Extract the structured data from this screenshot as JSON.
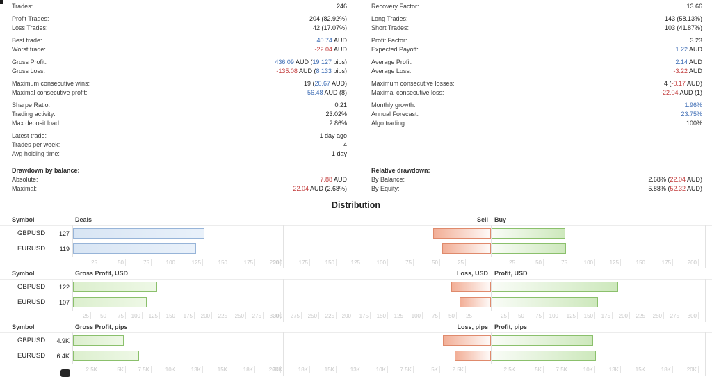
{
  "colors": {
    "positive_text": "#3e6db5",
    "negative_text": "#c23b3b",
    "deals_bar": "#dce8f6",
    "profit_bar": "#dff0d5",
    "loss_bar": "#f2ae96"
  },
  "stats": {
    "left": [
      {
        "label": "Trades:",
        "segs": [
          [
            "246",
            "k"
          ]
        ]
      },
      {
        "label": "Profit Trades:",
        "segs": [
          [
            "204 (82.92%)",
            "k"
          ]
        ],
        "g": true
      },
      {
        "label": "Loss Trades:",
        "segs": [
          [
            "42 (17.07%)",
            "k"
          ]
        ]
      },
      {
        "label": "Best trade:",
        "segs": [
          [
            "40.74",
            "b"
          ],
          [
            " AUD",
            "k"
          ]
        ],
        "g": true
      },
      {
        "label": "Worst trade:",
        "segs": [
          [
            "-22.04",
            "r"
          ],
          [
            " AUD",
            "k"
          ]
        ]
      },
      {
        "label": "Gross Profit:",
        "segs": [
          [
            "436.09",
            "b"
          ],
          [
            " AUD (",
            "k"
          ],
          [
            "19 127",
            "b"
          ],
          [
            " pips)",
            "k"
          ]
        ],
        "g": true
      },
      {
        "label": "Gross Loss:",
        "segs": [
          [
            "-135.08",
            "r"
          ],
          [
            " AUD (",
            "k"
          ],
          [
            "8 133",
            "b"
          ],
          [
            " pips)",
            "k"
          ]
        ]
      },
      {
        "label": "Maximum consecutive wins:",
        "segs": [
          [
            "19 (",
            "k"
          ],
          [
            "20.67",
            "b"
          ],
          [
            " AUD)",
            "k"
          ]
        ],
        "g": true
      },
      {
        "label": "Maximal consecutive profit:",
        "segs": [
          [
            "56.48",
            "b"
          ],
          [
            " AUD (8)",
            "k"
          ]
        ]
      },
      {
        "label": "Sharpe Ratio:",
        "segs": [
          [
            "0.21",
            "k"
          ]
        ],
        "g": true
      },
      {
        "label": "Trading activity:",
        "segs": [
          [
            "23.02%",
            "k"
          ]
        ]
      },
      {
        "label": "Max deposit load:",
        "segs": [
          [
            "2.86%",
            "k"
          ]
        ]
      },
      {
        "label": "Latest trade:",
        "segs": [
          [
            "1 day ago",
            "k"
          ]
        ],
        "g": true
      },
      {
        "label": "Trades per week:",
        "segs": [
          [
            "4",
            "k"
          ]
        ]
      },
      {
        "label": "Avg holding time:",
        "segs": [
          [
            "1 day",
            "k"
          ]
        ]
      }
    ],
    "right": [
      {
        "label": "Recovery Factor:",
        "segs": [
          [
            "13.66",
            "k"
          ]
        ]
      },
      {
        "label": "Long Trades:",
        "segs": [
          [
            "143 (58.13%)",
            "k"
          ]
        ],
        "g": true
      },
      {
        "label": "Short Trades:",
        "segs": [
          [
            "103 (41.87%)",
            "k"
          ]
        ]
      },
      {
        "label": "Profit Factor:",
        "segs": [
          [
            "3.23",
            "k"
          ]
        ],
        "g": true
      },
      {
        "label": "Expected Payoff:",
        "segs": [
          [
            "1.22",
            "b"
          ],
          [
            " AUD",
            "k"
          ]
        ]
      },
      {
        "label": "Average Profit:",
        "segs": [
          [
            "2.14",
            "b"
          ],
          [
            " AUD",
            "k"
          ]
        ],
        "g": true
      },
      {
        "label": "Average Loss:",
        "segs": [
          [
            "-3.22",
            "r"
          ],
          [
            " AUD",
            "k"
          ]
        ]
      },
      {
        "label": "Maximum consecutive losses:",
        "segs": [
          [
            "4 (",
            "k"
          ],
          [
            "-0.17",
            "r"
          ],
          [
            " AUD)",
            "k"
          ]
        ],
        "g": true
      },
      {
        "label": "Maximal consecutive loss:",
        "segs": [
          [
            "-22.04",
            "r"
          ],
          [
            " AUD (1)",
            "k"
          ]
        ]
      },
      {
        "label": "Monthly growth:",
        "segs": [
          [
            "1.96%",
            "b"
          ]
        ],
        "g": true
      },
      {
        "label": "Annual Forecast:",
        "segs": [
          [
            "23.75%",
            "b"
          ]
        ]
      },
      {
        "label": "Algo trading:",
        "segs": [
          [
            "100%",
            "k"
          ]
        ]
      }
    ]
  },
  "drawdown": {
    "left_header": "Drawdown by balance:",
    "left_rows": [
      {
        "label": "Absolute:",
        "segs": [
          [
            "7.88",
            "r"
          ],
          [
            " AUD",
            "k"
          ]
        ]
      },
      {
        "label": "Maximal:",
        "segs": [
          [
            "22.04",
            "r"
          ],
          [
            " AUD (2.68%)",
            "k"
          ]
        ]
      }
    ],
    "right_header": "Relative drawdown:",
    "right_rows": [
      {
        "label": "By Balance:",
        "segs": [
          [
            "2.68% (",
            "k"
          ],
          [
            "22.04",
            "r"
          ],
          [
            " AUD)",
            "k"
          ]
        ]
      },
      {
        "label": "By Equity:",
        "segs": [
          [
            "5.88% (",
            "k"
          ],
          [
            "52.32",
            "r"
          ],
          [
            " AUD)",
            "k"
          ]
        ]
      }
    ]
  },
  "distribution": {
    "title": "Distribution",
    "symbol_header": "Symbol"
  },
  "chart_data": [
    {
      "type": "bar",
      "row": 1,
      "title": "Deals",
      "bar_style": "blue",
      "categories": [
        "GBPUSD",
        "EURUSD"
      ],
      "values": [
        127,
        119
      ],
      "value_labels": [
        "127",
        "119"
      ],
      "xlim": [
        0,
        200
      ],
      "ticks": [
        [
          25,
          "25"
        ],
        [
          50,
          "50"
        ],
        [
          75,
          "75"
        ],
        [
          100,
          "100"
        ],
        [
          125,
          "125"
        ],
        [
          150,
          "150"
        ],
        [
          175,
          "175"
        ],
        [
          200,
          "200"
        ]
      ]
    },
    {
      "type": "diverging_bar",
      "row": 1,
      "left_title": "Sell",
      "right_title": "Buy",
      "categories": [
        "GBPUSD",
        "EURUSD"
      ],
      "series": [
        {
          "name": "Sell",
          "values": [
            56,
            47
          ]
        },
        {
          "name": "Buy",
          "values": [
            71,
            72
          ]
        }
      ],
      "xlim": [
        -200,
        200
      ]
    },
    {
      "type": "bar",
      "row": 2,
      "title": "Gross Profit, USD",
      "bar_style": "green",
      "categories": [
        "GBPUSD",
        "EURUSD"
      ],
      "values": [
        122,
        107
      ],
      "value_labels": [
        "122",
        "107"
      ],
      "xlim": [
        0,
        300
      ],
      "ticks": [
        [
          25,
          "25"
        ],
        [
          50,
          "50"
        ],
        [
          75,
          "75"
        ],
        [
          100,
          "100"
        ],
        [
          125,
          "125"
        ],
        [
          150,
          "150"
        ],
        [
          175,
          "175"
        ],
        [
          200,
          "200"
        ],
        [
          225,
          "225"
        ],
        [
          250,
          "250"
        ],
        [
          275,
          "275"
        ],
        [
          300,
          "300"
        ]
      ]
    },
    {
      "type": "diverging_bar",
      "row": 2,
      "left_title": "Loss, USD",
      "right_title": "Profit, USD",
      "categories": [
        "GBPUSD",
        "EURUSD"
      ],
      "series": [
        {
          "name": "Loss, USD",
          "values": [
            57,
            45
          ]
        },
        {
          "name": "Profit, USD",
          "values": [
            183,
            154
          ]
        }
      ],
      "xlim": [
        -300,
        300
      ]
    },
    {
      "type": "bar",
      "row": 3,
      "title": "Gross Profit, pips",
      "bar_style": "green",
      "categories": [
        "GBPUSD",
        "EURUSD"
      ],
      "values": [
        4900,
        6400
      ],
      "value_labels": [
        "4.9K",
        "6.4K"
      ],
      "xlim": [
        0,
        20000
      ],
      "ticks": [
        [
          2500,
          "2.5K"
        ],
        [
          5000,
          "5K"
        ],
        [
          7500,
          "7.5K"
        ],
        [
          10000,
          "10K"
        ],
        [
          12500,
          "13K"
        ],
        [
          15000,
          "15K"
        ],
        [
          17500,
          "18K"
        ],
        [
          20000,
          "20K"
        ]
      ]
    },
    {
      "type": "diverging_bar",
      "row": 3,
      "left_title": "Loss, pips",
      "right_title": "Profit, pips",
      "categories": [
        "GBPUSD",
        "EURUSD"
      ],
      "series": [
        {
          "name": "Loss, pips",
          "values": [
            4600,
            3500
          ]
        },
        {
          "name": "Profit, pips",
          "values": [
            9800,
            10100
          ]
        }
      ],
      "xlim": [
        -20000,
        20000
      ]
    }
  ]
}
